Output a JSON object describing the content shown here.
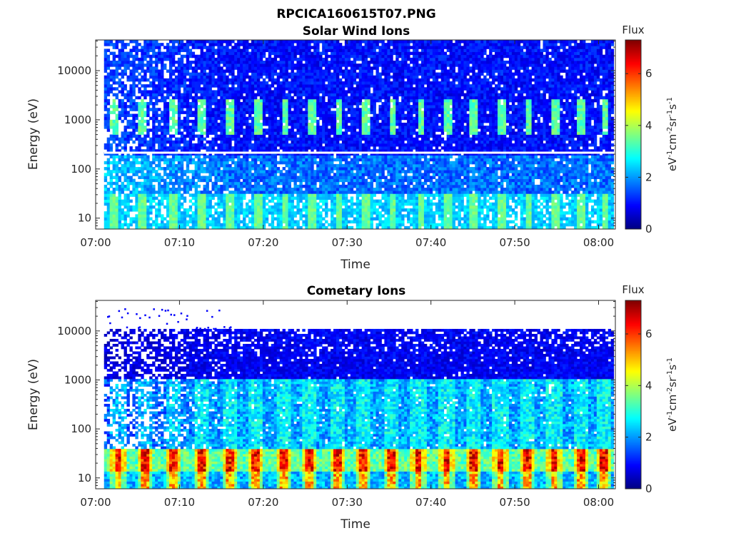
{
  "figure": {
    "title": "RPCICA160615T07.PNG"
  },
  "chart_data": [
    {
      "type": "heatmap",
      "title": "Solar Wind Ions",
      "xlabel": "Time",
      "ylabel": "Energy (eV)",
      "y_scale": "log",
      "ylim": [
        6,
        42000
      ],
      "xlim": [
        "07:00",
        "08:02"
      ],
      "x_ticks": [
        "07:00",
        "07:10",
        "07:20",
        "07:30",
        "07:40",
        "07:50",
        "08:00"
      ],
      "y_ticks": [
        "10",
        "100",
        "1000",
        "10000"
      ],
      "colorbar": {
        "label": "Flux",
        "unit_label": "eV-1cm-2sr-1s-1",
        "range": [
          0,
          7.3
        ],
        "ticks": [
          "0",
          "2",
          "4",
          "6"
        ],
        "colormap": "jet"
      },
      "grid": false,
      "pulse_times": [
        "07:02:00",
        "07:05:30",
        "07:09:00",
        "07:12:30",
        "07:15:50",
        "07:19:10",
        "07:22:30",
        "07:25:45",
        "07:28:50",
        "07:32:10",
        "07:35:20",
        "07:38:40",
        "07:41:50",
        "07:45:00",
        "07:48:20",
        "07:51:30",
        "07:54:40",
        "07:57:50",
        "08:00:40"
      ],
      "bands": [
        {
          "energy_range_eV": [
            6,
            30
          ],
          "level": 2.2
        },
        {
          "energy_range_eV": [
            30,
            200
          ],
          "level": 1.6
        },
        {
          "energy_range_eV": [
            200,
            42000
          ],
          "level": 1.0
        },
        {
          "energy_range_eV": [
            500,
            2500
          ],
          "level_at_pulses": 3.4
        }
      ]
    },
    {
      "type": "heatmap",
      "title": "Cometary Ions",
      "xlabel": "Time",
      "ylabel": "Energy (eV)",
      "y_scale": "log",
      "ylim": [
        6,
        42000
      ],
      "xlim": [
        "07:00",
        "08:02"
      ],
      "x_ticks": [
        "07:00",
        "07:10",
        "07:20",
        "07:30",
        "07:40",
        "07:50",
        "08:00"
      ],
      "y_ticks": [
        "10",
        "100",
        "1000",
        "10000"
      ],
      "colorbar": {
        "label": "Flux",
        "unit_label": "eV-1cm-2sr-1s-1",
        "range": [
          0,
          7.3
        ],
        "ticks": [
          "0",
          "2",
          "4",
          "6"
        ],
        "colormap": "jet"
      },
      "grid": false,
      "pulse_times": [
        "07:02:30",
        "07:05:40",
        "07:09:10",
        "07:12:30",
        "07:15:50",
        "07:19:00",
        "07:22:20",
        "07:25:20",
        "07:28:40",
        "07:31:50",
        "07:35:10",
        "07:38:20",
        "07:41:40",
        "07:44:50",
        "07:48:10",
        "07:51:20",
        "07:54:30",
        "07:57:40",
        "08:00:30"
      ],
      "bands": [
        {
          "energy_range_eV": [
            6,
            40
          ],
          "level_at_pulses": 6.5,
          "level_between": 4.0
        },
        {
          "energy_range_eV": [
            40,
            1000
          ],
          "level": 2.2
        },
        {
          "energy_range_eV": [
            1000,
            11000
          ],
          "level": 1.0
        }
      ]
    }
  ]
}
